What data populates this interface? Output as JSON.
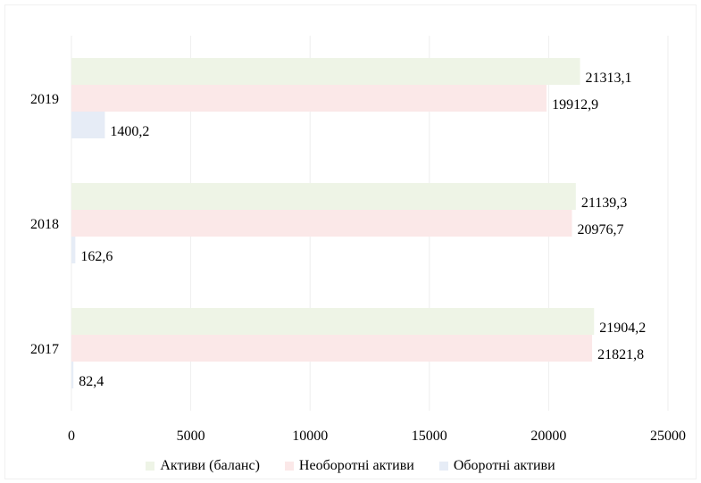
{
  "chart_data": {
    "type": "bar",
    "orientation": "horizontal",
    "categories": [
      "2019",
      "2018",
      "2017"
    ],
    "series": [
      {
        "name": "Активи (баланс)",
        "color": "#eef4e6",
        "values": [
          21313.1,
          21139.3,
          21904.2
        ],
        "labels": [
          "21313,1",
          "21139,3",
          "21904,2"
        ]
      },
      {
        "name": "Необоротні активи",
        "color": "#fbe8e8",
        "values": [
          19912.9,
          20976.7,
          21821.8
        ],
        "labels": [
          "19912,9",
          "20976,7",
          "21821,8"
        ]
      },
      {
        "name": "Оборотні активи",
        "color": "#e6ecf6",
        "values": [
          1400.2,
          162.6,
          82.4
        ],
        "labels": [
          "1400,2",
          "162,6",
          "82,4"
        ]
      }
    ],
    "xlim": [
      0,
      25000
    ],
    "xticks": [
      "0",
      "5000",
      "10000",
      "15000",
      "20000",
      "25000"
    ],
    "grid": true,
    "legend_position": "bottom"
  }
}
